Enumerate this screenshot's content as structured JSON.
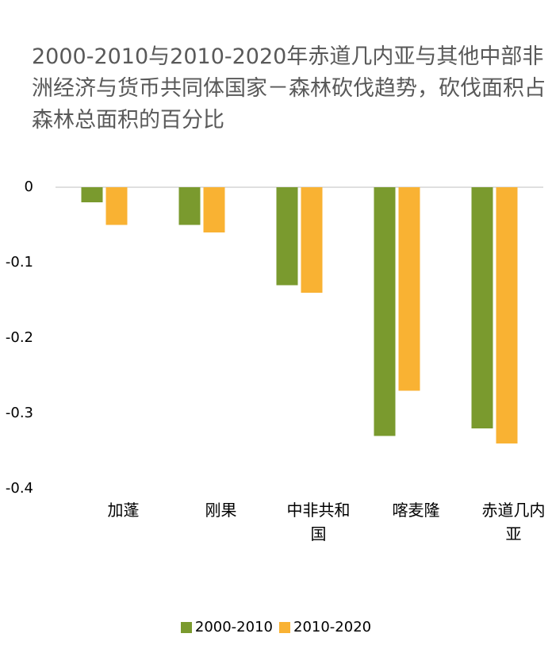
{
  "chart_data": {
    "type": "bar",
    "title": "2000-2010与2010-2020年赤道几内亚与其他中部非洲经济与货币共同体国家－森林砍伐趋势，砍伐面积占森林总面积的百分比",
    "categories": [
      "加蓬",
      "刚果",
      "中非共和国",
      "喀麦隆",
      "赤道几内亚"
    ],
    "series": [
      {
        "name": "2000-2010",
        "color": "#7a9a2e",
        "values": [
          -0.02,
          -0.05,
          -0.13,
          -0.33,
          -0.32
        ]
      },
      {
        "name": "2010-2020",
        "color": "#f9b233",
        "values": [
          -0.05,
          -0.06,
          -0.14,
          -0.27,
          -0.34
        ]
      }
    ],
    "ylim": [
      -0.4,
      0
    ],
    "yticks": [
      0,
      -0.1,
      -0.2,
      -0.3,
      -0.4
    ]
  }
}
